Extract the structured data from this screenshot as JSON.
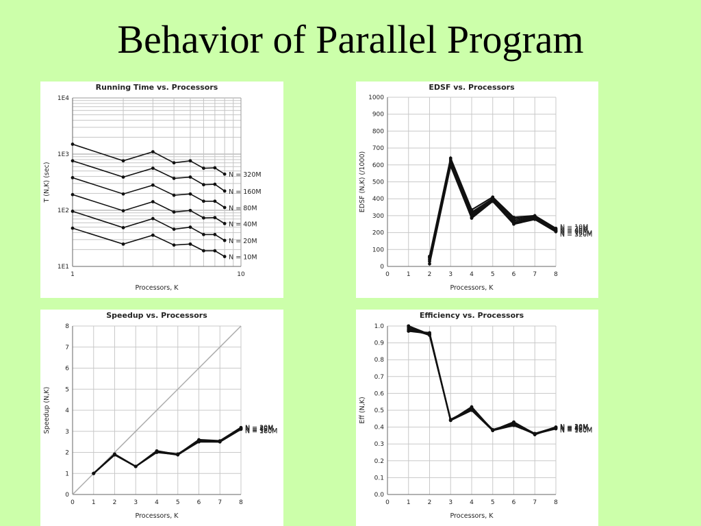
{
  "slide": {
    "title": "Behavior of Parallel Program"
  },
  "chart_data": [
    {
      "id": "running-time",
      "type": "line",
      "title": "Running Time vs. Processors",
      "xlabel": "Processors, K",
      "ylabel": "T (N,K) (sec)",
      "x_scale": "log",
      "y_scale": "log",
      "xlim": [
        1,
        10
      ],
      "ylim": [
        10,
        10000
      ],
      "xticks": [
        "1",
        "10"
      ],
      "yticks": [
        "1E1",
        "1E2",
        "1E3",
        "1E4"
      ],
      "grid": true,
      "x": [
        1,
        2,
        3,
        4,
        5,
        6,
        7,
        8
      ],
      "series": [
        {
          "name": "N = 320M",
          "values": [
            1500,
            760,
            1100,
            700,
            760,
            560,
            570,
            440
          ]
        },
        {
          "name": "N = 160M",
          "values": [
            760,
            390,
            560,
            370,
            390,
            285,
            290,
            220
          ]
        },
        {
          "name": "N = 80M",
          "values": [
            380,
            195,
            280,
            185,
            195,
            145,
            145,
            112
          ]
        },
        {
          "name": "N = 40M",
          "values": [
            190,
            98,
            142,
            93,
            99,
            73,
            74,
            58
          ]
        },
        {
          "name": "N = 20M",
          "values": [
            96,
            49,
            71,
            46,
            50,
            37,
            37,
            29
          ]
        },
        {
          "name": "N = 10M",
          "values": [
            48,
            25,
            36,
            24,
            25,
            19,
            19,
            15
          ]
        }
      ]
    },
    {
      "id": "edsf",
      "type": "line",
      "title": "EDSF vs. Processors",
      "xlabel": "Processors, K",
      "ylabel": "EDSF (N,K) (/1000)",
      "xlim": [
        0,
        8
      ],
      "ylim": [
        0,
        1000
      ],
      "xticks": [
        "0",
        "1",
        "2",
        "3",
        "4",
        "5",
        "6",
        "7",
        "8"
      ],
      "yticks": [
        "0",
        "100",
        "200",
        "300",
        "400",
        "500",
        "600",
        "700",
        "800",
        "900",
        "1000"
      ],
      "grid": true,
      "x": [
        2,
        3,
        4,
        5,
        6,
        7,
        8
      ],
      "series": [
        {
          "name": "N = 10M",
          "values": [
            60,
            640,
            335,
            410,
            290,
            300,
            225
          ]
        },
        {
          "name": "N = 20M",
          "values": [
            55,
            630,
            320,
            400,
            280,
            295,
            220
          ]
        },
        {
          "name": "N = 40M",
          "values": [
            50,
            620,
            310,
            395,
            270,
            290,
            215
          ]
        },
        {
          "name": "N = 80M",
          "values": [
            40,
            610,
            300,
            390,
            260,
            285,
            212
          ]
        },
        {
          "name": "N = 160M",
          "values": [
            30,
            600,
            290,
            385,
            255,
            280,
            208
          ]
        },
        {
          "name": "N = 320M",
          "values": [
            15,
            595,
            285,
            385,
            250,
            278,
            205
          ]
        }
      ]
    },
    {
      "id": "speedup",
      "type": "line",
      "title": "Speedup vs. Processors",
      "xlabel": "Processors, K",
      "ylabel": "Speedup (N,K)",
      "xlim": [
        0,
        8
      ],
      "ylim": [
        0,
        8
      ],
      "xticks": [
        "0",
        "1",
        "2",
        "3",
        "4",
        "5",
        "6",
        "7",
        "8"
      ],
      "yticks": [
        "0",
        "1",
        "2",
        "3",
        "4",
        "5",
        "6",
        "7",
        "8"
      ],
      "grid": true,
      "reference_line": [
        [
          0,
          0
        ],
        [
          8,
          8
        ]
      ],
      "x": [
        1,
        2,
        3,
        4,
        5,
        6,
        7,
        8
      ],
      "series": [
        {
          "name": "N = 10M",
          "values": [
            1,
            1.9,
            1.33,
            2.0,
            1.9,
            2.5,
            2.5,
            3.1
          ]
        },
        {
          "name": "N = 20M",
          "values": [
            1,
            1.92,
            1.33,
            2.05,
            1.92,
            2.55,
            2.52,
            3.15
          ]
        },
        {
          "name": "N = 40M",
          "values": [
            1,
            1.9,
            1.33,
            2.07,
            1.9,
            2.57,
            2.53,
            3.12
          ]
        },
        {
          "name": "N = 80M",
          "values": [
            1,
            1.9,
            1.33,
            2.05,
            1.9,
            2.6,
            2.55,
            3.18
          ]
        },
        {
          "name": "N = 160M",
          "values": [
            1,
            1.88,
            1.33,
            2.02,
            1.88,
            2.52,
            2.5,
            3.1
          ]
        },
        {
          "name": "N = 320M",
          "values": [
            1,
            1.9,
            1.33,
            2.04,
            1.9,
            2.56,
            2.54,
            3.15
          ]
        }
      ]
    },
    {
      "id": "efficiency",
      "type": "line",
      "title": "Efficiency vs. Processors",
      "xlabel": "Processors, K",
      "ylabel": "Eff (N,K)",
      "xlim": [
        0,
        8
      ],
      "ylim": [
        0,
        1
      ],
      "xticks": [
        "0",
        "1",
        "2",
        "3",
        "4",
        "5",
        "6",
        "7",
        "8"
      ],
      "yticks": [
        "0.0",
        "0.1",
        "0.2",
        "0.3",
        "0.4",
        "0.5",
        "0.6",
        "0.7",
        "0.8",
        "0.9",
        "1.0"
      ],
      "grid": true,
      "x": [
        1,
        2,
        3,
        4,
        5,
        6,
        7,
        8
      ],
      "series": [
        {
          "name": "N = 10M",
          "values": [
            1.0,
            0.95,
            0.44,
            0.5,
            0.38,
            0.41,
            0.36,
            0.39
          ]
        },
        {
          "name": "N = 20M",
          "values": [
            0.97,
            0.955,
            0.44,
            0.52,
            0.38,
            0.43,
            0.355,
            0.4
          ]
        },
        {
          "name": "N = 40M",
          "values": [
            0.99,
            0.945,
            0.445,
            0.51,
            0.385,
            0.42,
            0.36,
            0.395
          ]
        },
        {
          "name": "N = 80M",
          "values": [
            1.0,
            0.95,
            0.44,
            0.505,
            0.38,
            0.425,
            0.362,
            0.398
          ]
        },
        {
          "name": "N = 160M",
          "values": [
            0.98,
            0.948,
            0.442,
            0.515,
            0.382,
            0.415,
            0.358,
            0.392
          ]
        },
        {
          "name": "N = 320M",
          "values": [
            0.97,
            0.96,
            0.44,
            0.5,
            0.38,
            0.43,
            0.36,
            0.4
          ]
        }
      ]
    }
  ]
}
